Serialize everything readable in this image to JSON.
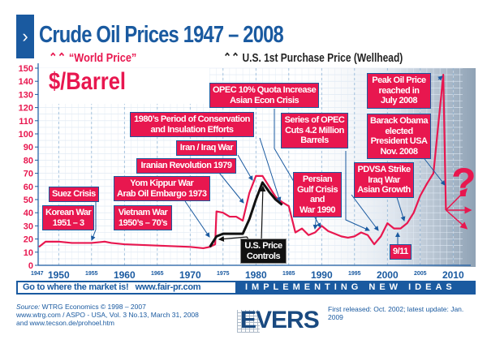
{
  "header": {
    "title": "Crude Oil Prices 1947 – 2008",
    "chevron": "›",
    "unit_label": "$/Barrel"
  },
  "chart_data": {
    "type": "line",
    "title": "Crude Oil Prices 1947 – 2008",
    "ylabel": "$/Barrel",
    "ylim": [
      0,
      150
    ],
    "xlim": [
      1947,
      2011
    ],
    "y_ticks": [
      "0",
      "10",
      "20",
      "30",
      "40",
      "50",
      "60",
      "70",
      "80",
      "90",
      "100",
      "110",
      "120",
      "130",
      "140",
      "150"
    ],
    "x_ticks_major": [
      "1950",
      "1960",
      "1970",
      "1980",
      "1990",
      "2000",
      "2010"
    ],
    "x_ticks_minor": [
      "1947",
      "1955",
      "1965",
      "1975",
      "1985",
      "1995",
      "2005"
    ],
    "legend": {
      "placement": "top-left",
      "entries": [
        "“World Price”",
        "U.S. 1st Purchase Price (Wellhead)"
      ]
    },
    "series": [
      {
        "name": "“World Price”",
        "color": "#e8174f",
        "x": [
          1947,
          1948,
          1950,
          1952,
          1955,
          1957,
          1958,
          1960,
          1965,
          1970,
          1972,
          1973,
          1973.8,
          1974,
          1975,
          1976,
          1977,
          1978,
          1979,
          1980,
          1981,
          1982,
          1983,
          1984,
          1985,
          1986,
          1987,
          1988,
          1989,
          1990,
          1991,
          1992,
          1993,
          1994,
          1995,
          1996,
          1997,
          1998,
          1999,
          2000,
          2001,
          2002,
          2003,
          2004,
          2005,
          2006,
          2007,
          2008.5,
          2008.9
        ],
        "y": [
          14,
          18,
          18,
          17,
          17,
          18,
          17,
          16,
          15,
          14,
          13,
          14,
          16,
          41,
          40,
          37,
          37,
          34,
          55,
          68,
          68,
          60,
          52,
          48,
          45,
          25,
          28,
          23,
          25,
          30,
          26,
          24,
          22,
          21,
          22,
          25,
          23,
          16,
          22,
          32,
          28,
          28,
          32,
          40,
          53,
          62,
          70,
          145,
          42
        ]
      },
      {
        "name": "U.S. 1st Purchase Price (Wellhead)",
        "color": "#111111",
        "x": [
          1973,
          1974,
          1975,
          1976,
          1977,
          1978,
          1979,
          1980,
          1981,
          1982,
          1983,
          1984
        ],
        "y": [
          14,
          22,
          24,
          24,
          24,
          24,
          35,
          50,
          63,
          56,
          50,
          46
        ]
      }
    ],
    "annotations": [
      {
        "text": "Korean War\n1951 – 3"
      },
      {
        "text": "Suez Crisis"
      },
      {
        "text": "Yom Kippur War\nArab Oil Embargo 1973"
      },
      {
        "text": "Vietnam War\n1950’s – 70’s"
      },
      {
        "text": "Iranian Revolution 1979"
      },
      {
        "text": "Iran / Iraq War"
      },
      {
        "text": "1980’s Period of Conservation\nand Insulation Efforts"
      },
      {
        "text": "OPEC 10% Quota Increase\nAsian Econ Crisis"
      },
      {
        "text": "Series of OPEC\nCuts 4.2 Million\nBarrels"
      },
      {
        "text": "Persian\nGulf Crisis\nand\nWar 1990"
      },
      {
        "text": "U.S. Price\nControls"
      },
      {
        "text": "Peak Oil Price\nreached in\nJuly 2008"
      },
      {
        "text": "Barack Obama\nelected\nPresident USA\nNov. 2008"
      },
      {
        "text": "PDVSA Strike\nIraq War\nAsian Growth"
      },
      {
        "text": "9/11"
      },
      {
        "text": "?"
      }
    ]
  },
  "footer": {
    "band_left": "Go to where the market is!   www.fair-pr.com",
    "band_right": "IMPLEMENTING NEW IDEAS",
    "source_label": "Source:",
    "source_lines": [
      "WTRG Economics © 1998 – 2007",
      "www.wtrg.com / ASPO - USA, Vol. 3 No.13, March 31, 2008",
      "and www.tecson.de/prohoel.htm"
    ],
    "released": "First released: Oct. 2002; latest update: Jan. 2009",
    "logo": "EVERS"
  }
}
